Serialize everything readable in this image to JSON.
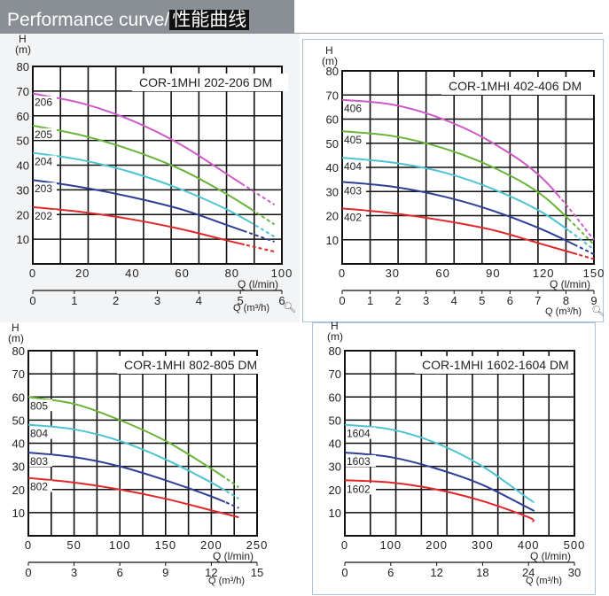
{
  "header": {
    "title_en": "Performance curve/",
    "title_cn": "性能曲线"
  },
  "chart_data": [
    {
      "type": "line",
      "title": "COR-1MHI 202-206 DM",
      "ylabel": "H\n(m)",
      "xlabel": "Q (l/min)",
      "x2label": "Q (m³/h)",
      "xlim": [
        0,
        100
      ],
      "ylim": [
        0,
        80
      ],
      "xticks": [
        "0",
        "20",
        "40",
        "60",
        "80",
        "100"
      ],
      "x2ticks": [
        "0",
        "1",
        "2",
        "3",
        "4",
        "5",
        "6"
      ],
      "x2max": 6,
      "yticks": [
        "10",
        "20",
        "30",
        "40",
        "50",
        "60",
        "70",
        "80"
      ],
      "grid": true,
      "series": [
        {
          "name": "206",
          "color": "#cc5bc6",
          "x": [
            0,
            20,
            40,
            60,
            80,
            97
          ],
          "y": [
            69,
            65,
            58,
            48,
            35,
            24
          ],
          "solid_max": 85
        },
        {
          "name": "205",
          "color": "#6ab43a",
          "x": [
            0,
            20,
            40,
            60,
            80,
            97
          ],
          "y": [
            56,
            52,
            46,
            38,
            27,
            16
          ],
          "solid_max": 88
        },
        {
          "name": "204",
          "color": "#4ec3d1",
          "x": [
            0,
            20,
            40,
            60,
            80,
            97
          ],
          "y": [
            45,
            42,
            37,
            30,
            21,
            11
          ],
          "solid_max": 88
        },
        {
          "name": "203",
          "color": "#2d3f95",
          "x": [
            0,
            20,
            40,
            60,
            80,
            97
          ],
          "y": [
            34,
            31,
            27,
            22,
            15,
            9
          ],
          "solid_max": 85
        },
        {
          "name": "202",
          "color": "#e0282b",
          "x": [
            0,
            20,
            40,
            60,
            80,
            97
          ],
          "y": [
            23,
            21,
            18,
            14,
            9,
            5
          ],
          "solid_max": 85
        }
      ]
    },
    {
      "type": "line",
      "title": "COR-1MHI 402-406 DM",
      "ylabel": "H\n(m)",
      "xlabel": "Q (l/min)",
      "x2label": "Q (m³/h)",
      "xlim": [
        0,
        150
      ],
      "ylim": [
        0,
        80
      ],
      "xticks": [
        "0",
        "30",
        "60",
        "90",
        "120",
        "150"
      ],
      "x2ticks": [
        "0",
        "1",
        "2",
        "3",
        "4",
        "5",
        "6",
        "7",
        "8",
        "9"
      ],
      "x2max": 9,
      "yticks": [
        "10",
        "20",
        "30",
        "40",
        "50",
        "60",
        "70",
        "80"
      ],
      "grid": true,
      "series": [
        {
          "name": "406",
          "color": "#cc5bc6",
          "x": [
            0,
            30,
            60,
            90,
            120,
            150
          ],
          "y": [
            68,
            66,
            60,
            50,
            35,
            10
          ],
          "solid_max": 130
        },
        {
          "name": "405",
          "color": "#6ab43a",
          "x": [
            0,
            30,
            60,
            90,
            120,
            150
          ],
          "y": [
            55,
            53,
            48,
            40,
            28,
            8
          ],
          "solid_max": 135
        },
        {
          "name": "404",
          "color": "#4ec3d1",
          "x": [
            0,
            30,
            60,
            90,
            120,
            150
          ],
          "y": [
            44,
            42,
            38,
            31,
            21,
            6
          ],
          "solid_max": 135
        },
        {
          "name": "403",
          "color": "#2d3f95",
          "x": [
            0,
            30,
            60,
            90,
            120,
            150
          ],
          "y": [
            34,
            32,
            28,
            22,
            14,
            4
          ],
          "solid_max": 140
        },
        {
          "name": "402",
          "color": "#e0282b",
          "x": [
            0,
            30,
            60,
            90,
            120,
            150
          ],
          "y": [
            23,
            21,
            18,
            14,
            8,
            2
          ],
          "solid_max": 140
        }
      ]
    },
    {
      "type": "line",
      "title": "COR-1MHI 802-805 DM",
      "ylabel": "H\n(m)",
      "xlabel": "Q (l/min)",
      "x2label": "Q (m³/h)",
      "xlim": [
        0,
        250
      ],
      "ylim": [
        0,
        80
      ],
      "xticks": [
        "0",
        "50",
        "100",
        "150",
        "200",
        "250"
      ],
      "x2ticks": [
        "0",
        "3",
        "6",
        "9",
        "12",
        "15"
      ],
      "x2max": 15,
      "yticks": [
        "10",
        "20",
        "30",
        "40",
        "50",
        "60",
        "70",
        "80"
      ],
      "grid": true,
      "series": [
        {
          "name": "805",
          "color": "#6ab43a",
          "x": [
            0,
            50,
            100,
            150,
            200,
            230
          ],
          "y": [
            60,
            57,
            50,
            41,
            29,
            21
          ],
          "solid_max": 215
        },
        {
          "name": "804",
          "color": "#4ec3d1",
          "x": [
            0,
            50,
            100,
            150,
            200,
            230
          ],
          "y": [
            48,
            46,
            41,
            33,
            23,
            16
          ],
          "solid_max": 215
        },
        {
          "name": "803",
          "color": "#2d3f95",
          "x": [
            0,
            50,
            100,
            150,
            200,
            230
          ],
          "y": [
            36,
            34,
            30,
            24,
            17,
            12
          ],
          "solid_max": 215
        },
        {
          "name": "802",
          "color": "#e0282b",
          "x": [
            0,
            50,
            100,
            150,
            200,
            230
          ],
          "y": [
            25,
            23,
            20,
            16,
            11,
            8
          ],
          "solid_max": 230
        }
      ]
    },
    {
      "type": "line",
      "title": "COR-1MHI 1602-1604 DM",
      "ylabel": "H\n(m)",
      "xlabel": "Q (l/min)",
      "x2label": "Q (m³/h)",
      "xlim": [
        0,
        500
      ],
      "ylim": [
        0,
        80
      ],
      "xticks": [
        "0",
        "100",
        "200",
        "300",
        "400",
        "500"
      ],
      "x2ticks": [
        "0",
        "6",
        "12",
        "18",
        "24",
        "30"
      ],
      "x2max": 30,
      "yticks": [
        "10",
        "20",
        "30",
        "40",
        "50",
        "60",
        "70",
        "80"
      ],
      "grid": true,
      "series": [
        {
          "name": "1604",
          "color": "#4ec3d1",
          "x": [
            0,
            100,
            200,
            300,
            400,
            410
          ],
          "y": [
            48,
            46,
            40,
            30,
            16,
            15
          ],
          "solid_max": 410
        },
        {
          "name": "1603",
          "color": "#2d3f95",
          "x": [
            0,
            100,
            200,
            300,
            400,
            410
          ],
          "y": [
            36,
            34,
            29,
            22,
            12,
            11
          ],
          "solid_max": 410
        },
        {
          "name": "1602",
          "color": "#e0282b",
          "x": [
            0,
            100,
            200,
            300,
            400,
            410
          ],
          "y": [
            24,
            23,
            20,
            15,
            8,
            6
          ],
          "solid_max": 410
        }
      ]
    }
  ]
}
